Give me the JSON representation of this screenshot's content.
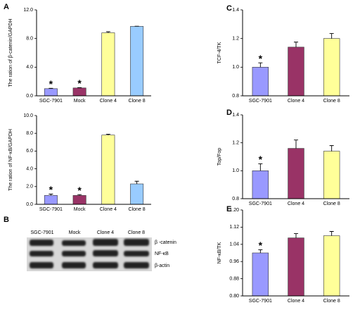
{
  "chart_data": [
    {
      "type": "bar",
      "panel": "A",
      "y_label": "The ration of β-catenin/GAPDH",
      "categories": [
        "SGC-7901",
        "Mock",
        "Clone 4",
        "Clone 8"
      ],
      "values": [
        1.0,
        1.1,
        8.8,
        9.7
      ],
      "errors": [
        0.05,
        0.05,
        0.15,
        0.02
      ],
      "annotations": [
        "*",
        "*",
        null,
        null
      ],
      "colors": [
        "#9999ff",
        "#993366",
        "#ffff99",
        "#99ccff"
      ],
      "ylim": [
        0,
        12
      ],
      "yticks": [
        {
          "value": 0,
          "label": "0.0"
        },
        {
          "value": 4,
          "label": "4.0"
        },
        {
          "value": 8,
          "label": "8.0"
        },
        {
          "value": 12,
          "label": "12.0"
        }
      ]
    },
    {
      "type": "bar",
      "y_label": "The ration of NF-κB/GAPDH",
      "categories": [
        "SGC-7901",
        "Mock",
        "Clone 4",
        "Clone 8"
      ],
      "values": [
        1.0,
        1.0,
        7.8,
        2.3
      ],
      "errors": [
        0.15,
        0.1,
        0.1,
        0.3
      ],
      "annotations": [
        "*",
        "*",
        null,
        null
      ],
      "colors": [
        "#9999ff",
        "#993366",
        "#ffff99",
        "#99ccff"
      ],
      "ylim": [
        0,
        10
      ],
      "yticks": [
        {
          "value": 0,
          "label": "0.0"
        },
        {
          "value": 2,
          "label": "2.0"
        },
        {
          "value": 4,
          "label": "4.0"
        },
        {
          "value": 6,
          "label": "6.0"
        },
        {
          "value": 8,
          "label": "8.0"
        },
        {
          "value": 10,
          "label": "10.0"
        }
      ]
    },
    {
      "type": "bar",
      "panel": "C",
      "y_label": "TCF-4/TK",
      "categories": [
        "SGC-7901",
        "Clone 4",
        "Clone 8"
      ],
      "values": [
        1.0,
        1.14,
        1.2
      ],
      "errors": [
        0.03,
        0.035,
        0.035
      ],
      "annotations": [
        "*",
        null,
        null
      ],
      "colors": [
        "#9999ff",
        "#993366",
        "#ffff99"
      ],
      "ylim": [
        0.8,
        1.4
      ],
      "yticks": [
        0.8,
        {
          "value": 1,
          "label": "1.0"
        },
        1.2,
        1.4
      ]
    },
    {
      "type": "bar",
      "panel": "D",
      "y_label": "Top/Fop",
      "categories": [
        "SGC-7901",
        "Clone 4",
        "Clone 8"
      ],
      "values": [
        1.0,
        1.16,
        1.14
      ],
      "errors": [
        0.05,
        0.06,
        0.04
      ],
      "annotations": [
        "*",
        null,
        null
      ],
      "colors": [
        "#9999ff",
        "#993366",
        "#ffff99"
      ],
      "ylim": [
        0.8,
        1.4
      ],
      "yticks": [
        0.8,
        {
          "value": 1,
          "label": "1.0"
        },
        1.2,
        1.4
      ]
    },
    {
      "type": "bar",
      "panel": "E",
      "y_label": "NF-κB/TK",
      "categories": [
        "SGC-7901",
        "Clone 4",
        "Clone 8"
      ],
      "values": [
        1.0,
        1.07,
        1.08
      ],
      "errors": [
        0.015,
        0.02,
        0.02
      ],
      "annotations": [
        "*",
        null,
        null
      ],
      "colors": [
        "#9999ff",
        "#993366",
        "#ffff99"
      ],
      "ylim": [
        0.8,
        1.2
      ],
      "yticks": [
        {
          "value": 0.8,
          "label": "0.80"
        },
        0.88,
        0.96,
        1.04,
        1.12,
        {
          "value": 1.2,
          "label": "1.20"
        }
      ]
    }
  ],
  "blot": {
    "panel": "B",
    "lanes": [
      "SGC-7901",
      "Mock",
      "Clone 4",
      "Clone 8"
    ],
    "bands": [
      "β -catenin",
      "NF-κB",
      "β-actin"
    ]
  }
}
